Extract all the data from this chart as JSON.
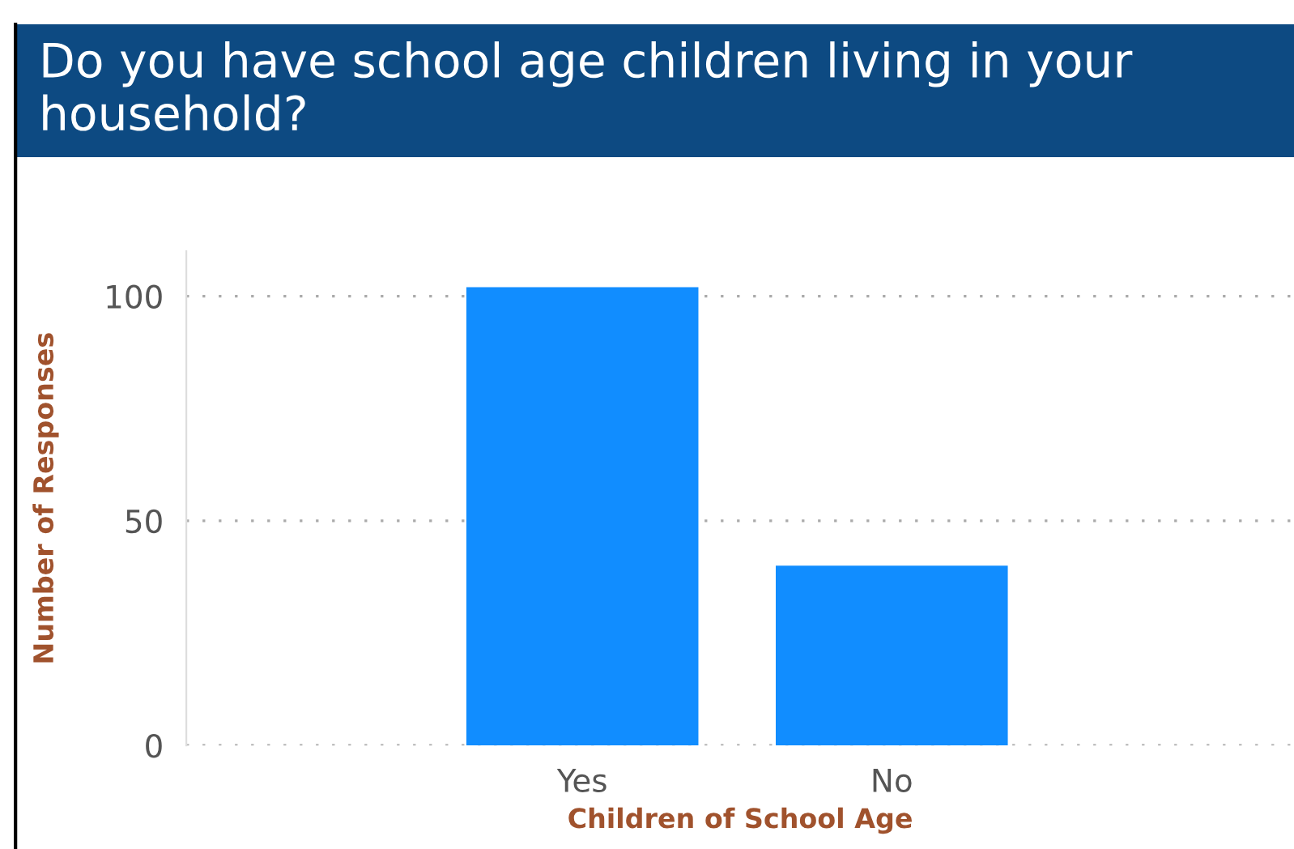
{
  "chart_data": {
    "type": "bar",
    "title": "Do you have school age children living in your household?",
    "xlabel": "Children of School Age",
    "ylabel": "Number of Responses",
    "categories": [
      "Yes",
      "No"
    ],
    "values": [
      102,
      40
    ],
    "color": "#118dff",
    "ylim": [
      0,
      110
    ],
    "yticks": [
      0,
      50,
      100
    ],
    "grid": "y"
  }
}
